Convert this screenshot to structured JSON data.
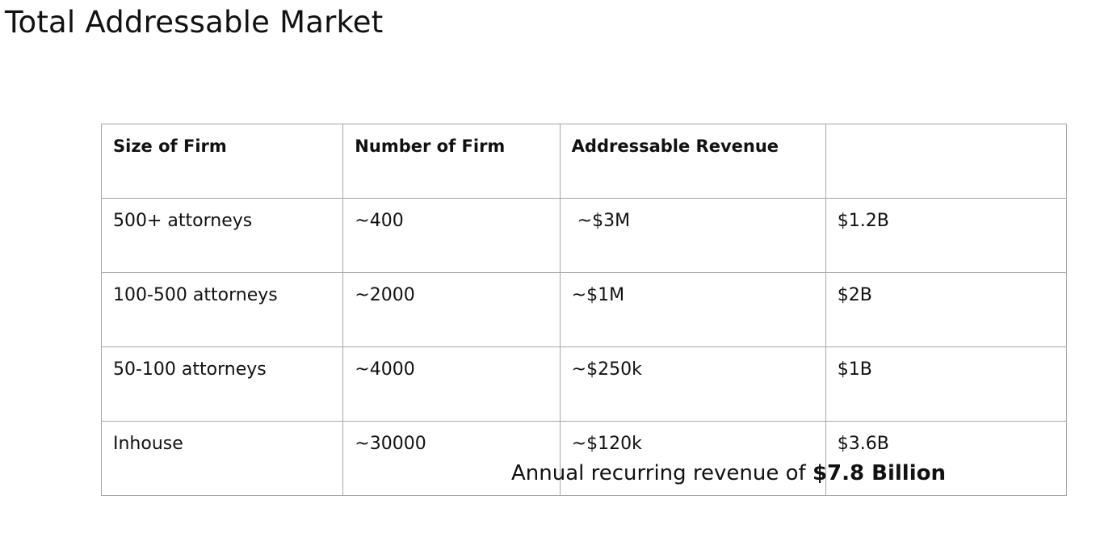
{
  "document": {
    "title": "Total Addressable Market"
  },
  "table": {
    "headers": [
      "Size of Firm",
      "Number of Firm",
      "Addressable Revenue",
      ""
    ],
    "rows": [
      [
        "500+ attorneys",
        "~400",
        " ~$3M",
        "$1.2B"
      ],
      [
        "100-500 attorneys",
        "~2000",
        "~$1M",
        "$2B"
      ],
      [
        "50-100 attorneys",
        "~4000",
        "~$250k",
        "$1B"
      ],
      [
        "Inhouse",
        "~30000",
        "~$120k",
        "$3.6B"
      ]
    ]
  },
  "summary": {
    "prefix": "Annual recurring revenue of ",
    "value": "$7.8 Billion"
  }
}
